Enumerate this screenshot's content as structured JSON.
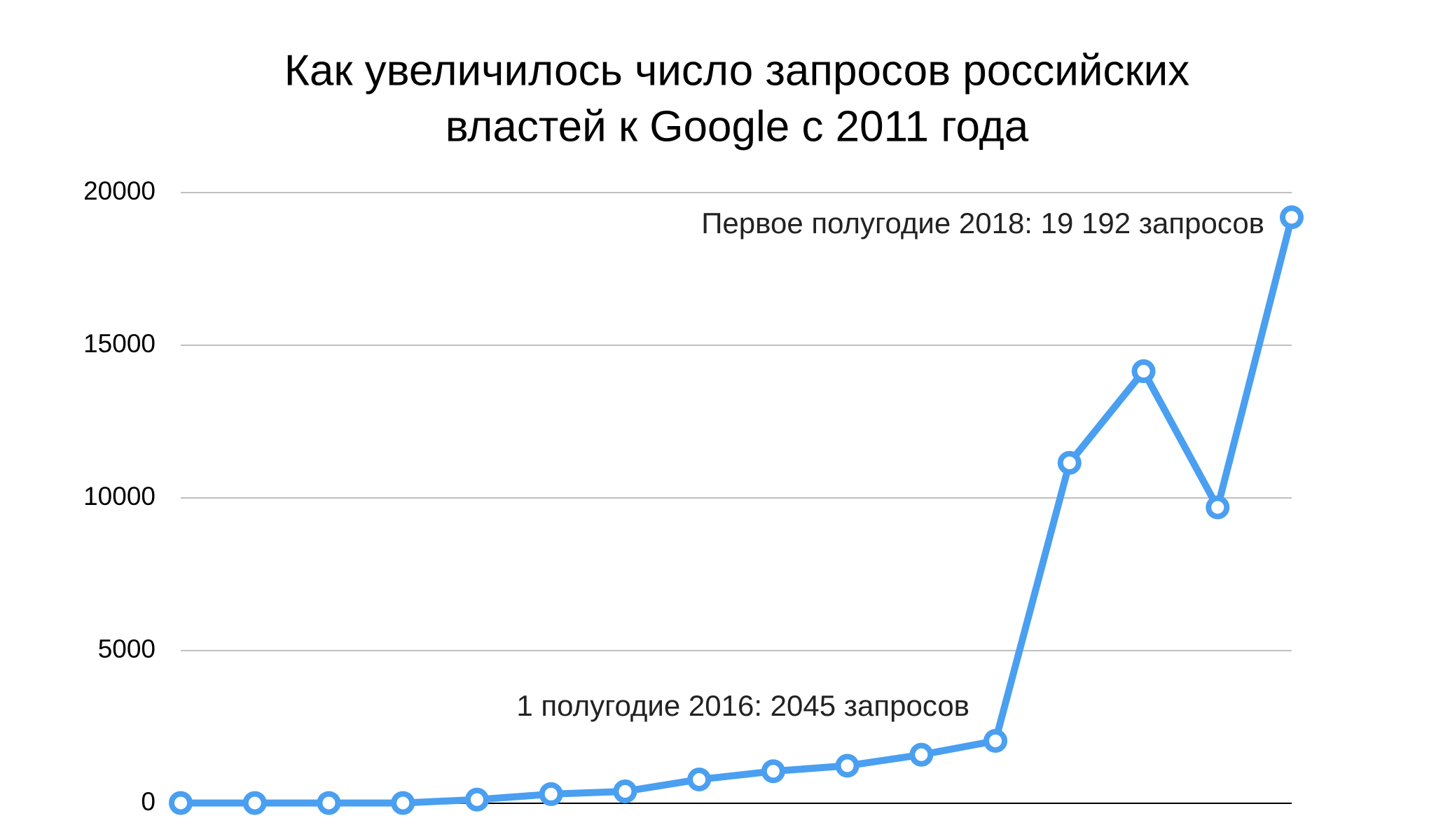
{
  "chart_data": {
    "type": "line",
    "title": [
      "Как увеличилось число запросов российских",
      "властей к Google с 2011 года"
    ],
    "categories": [
      null,
      null,
      null,
      null,
      null,
      null,
      null,
      null,
      null,
      null,
      null,
      null,
      null,
      null,
      null,
      null
    ],
    "series": [
      {
        "color": "#4a9ff0",
        "values": [
          10,
          10,
          10,
          10,
          120,
          300,
          390,
          780,
          1050,
          1230,
          1590,
          2045,
          11150,
          14150,
          9690,
          19192
        ]
      }
    ],
    "annotations": [
      "Первое полугодие 2018: 19 192 запросов",
      "1 полугодие 2016: 2045 запросов"
    ],
    "ylim": [
      0,
      20000
    ],
    "yticks": [
      0,
      5000,
      10000,
      15000,
      20000
    ],
    "grid": true
  }
}
